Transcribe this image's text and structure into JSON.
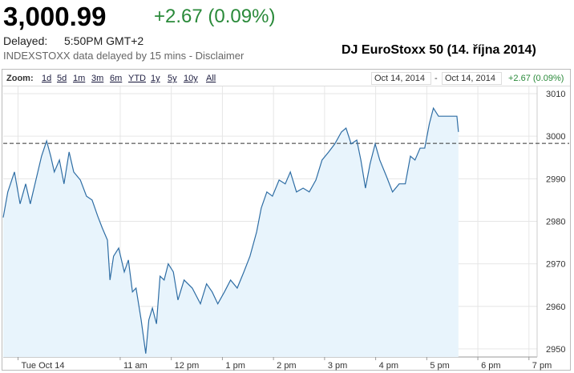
{
  "header": {
    "price": "3,000.99",
    "change": "+2.67 (0.09%)",
    "delayed_label": "Delayed:",
    "delayed_time": "5:50PM GMT+2",
    "note": "INDEXSTOXX data delayed by 15 mins - Disclaimer"
  },
  "toolbar": {
    "zoom_label": "Zoom:",
    "zoom_options": [
      "1d",
      "5d",
      "1m",
      "3m",
      "6m",
      "YTD",
      "1y",
      "5y",
      "10y",
      "All"
    ],
    "date_from": "Oct 14, 2014",
    "date_separator": "-",
    "date_to": "Oct 14, 2014",
    "change": "+2.67 (0.09%)"
  },
  "chart_data": {
    "type": "line",
    "title": "DJ EuroStoxx 50 (14. října 2014)",
    "x": [
      8.71,
      8.8,
      8.93,
      9.04,
      9.15,
      9.24,
      9.35,
      9.46,
      9.56,
      9.64,
      9.71,
      9.81,
      9.9,
      10.0,
      10.09,
      10.22,
      10.34,
      10.45,
      10.56,
      10.65,
      10.75,
      10.8,
      10.87,
      10.97,
      11.08,
      11.16,
      11.24,
      11.31,
      11.41,
      11.5,
      11.56,
      11.63,
      11.71,
      11.78,
      11.86,
      11.94,
      12.04,
      12.13,
      12.25,
      12.41,
      12.57,
      12.69,
      12.8,
      12.91,
      13.04,
      13.16,
      13.29,
      13.42,
      13.54,
      13.67,
      13.76,
      13.87,
      13.98,
      14.11,
      14.23,
      14.33,
      14.45,
      14.58,
      14.7,
      14.83,
      14.95,
      15.08,
      15.2,
      15.33,
      15.42,
      15.52,
      15.63,
      15.71,
      15.8,
      15.89,
      15.99,
      16.08,
      16.21,
      16.33,
      16.46,
      16.58,
      16.68,
      16.77,
      16.87,
      16.96,
      17.05,
      17.13,
      17.23,
      17.32,
      17.59,
      17.62
    ],
    "series": [
      {
        "name": "DJ EuroStoxx 50",
        "color": "#2e6da4",
        "fill": "#e8f4fc",
        "values": [
          2980.9,
          2986.9,
          2991.6,
          2984.1,
          2988.8,
          2984.1,
          2989.7,
          2995.3,
          2998.9,
          2995.3,
          2991.6,
          2994.4,
          2988.8,
          2996.3,
          2991.6,
          2989.7,
          2985.9,
          2985.0,
          2981.2,
          2978.4,
          2975.6,
          2966.2,
          2971.8,
          2973.7,
          2968.1,
          2970.9,
          2963.4,
          2964.3,
          2956.8,
          2948.9,
          2956.8,
          2959.6,
          2955.9,
          2967.1,
          2966.2,
          2970.0,
          2968.1,
          2961.5,
          2966.2,
          2964.3,
          2960.6,
          2965.3,
          2963.4,
          2960.6,
          2963.4,
          2966.2,
          2964.3,
          2968.1,
          2971.8,
          2977.5,
          2983.1,
          2986.9,
          2985.9,
          2989.7,
          2988.8,
          2991.6,
          2986.9,
          2987.8,
          2986.9,
          2989.7,
          2994.4,
          2996.3,
          2998.2,
          3001.0,
          3001.9,
          2998.2,
          2999.1,
          2994.4,
          2987.8,
          2993.5,
          2998.2,
          2994.4,
          2990.6,
          2986.9,
          2988.8,
          2988.8,
          2995.3,
          2994.4,
          2997.2,
          2997.2,
          3002.9,
          3006.6,
          3004.7,
          3004.7,
          3004.7,
          3001.0
        ]
      }
    ],
    "previous_close": 2998.32,
    "xlim": [
      8.71,
      19.16
    ],
    "xticks": [
      {
        "value": 9,
        "label": "Tue Oct 14"
      },
      {
        "value": 11,
        "label": "11 am"
      },
      {
        "value": 12,
        "label": "12 pm"
      },
      {
        "value": 13,
        "label": "1 pm"
      },
      {
        "value": 14,
        "label": "2 pm"
      },
      {
        "value": 15,
        "label": "3 pm"
      },
      {
        "value": 16,
        "label": "4 pm"
      },
      {
        "value": 17,
        "label": "5 pm"
      },
      {
        "value": 18,
        "label": "6 pm"
      },
      {
        "value": 19,
        "label": "7 pm"
      }
    ],
    "ylim": [
      2948.1,
      3011.7
    ],
    "yticks": [
      2950,
      2960,
      2970,
      2980,
      2990,
      3000,
      3010
    ],
    "grid": true
  }
}
